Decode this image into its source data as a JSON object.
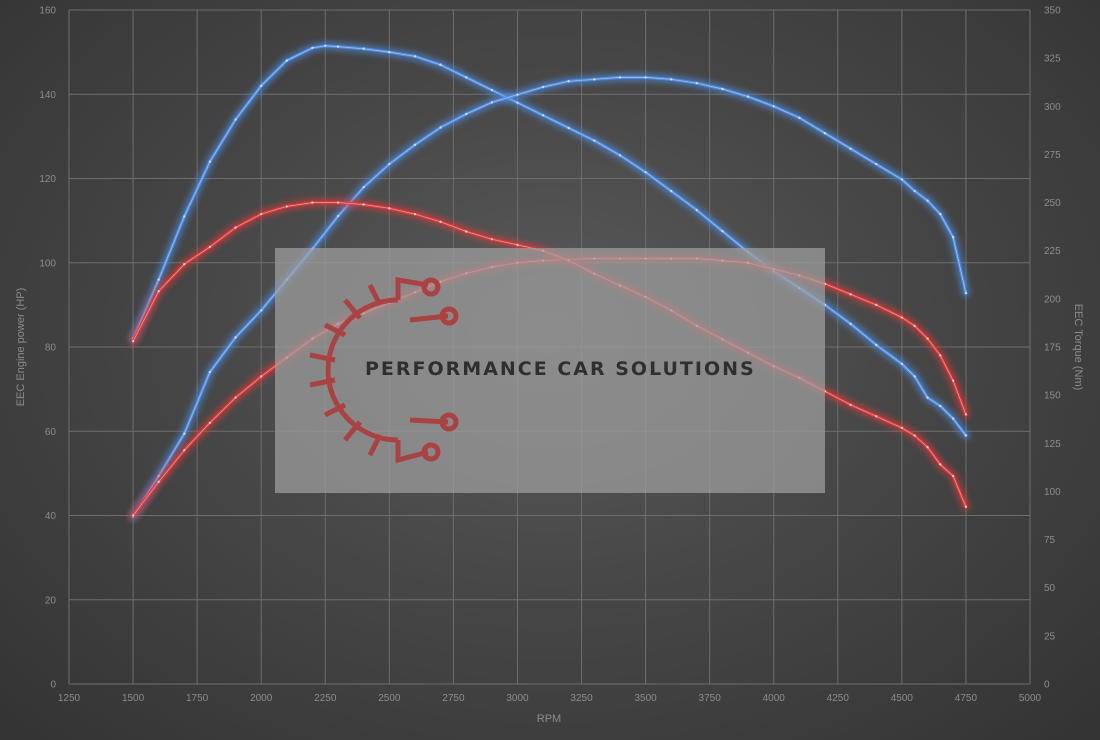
{
  "chart_data": {
    "type": "line",
    "title": "",
    "xlabel": "RPM",
    "ylabel_left": "EEC Engine power (HP)",
    "ylabel_right": "EEC Torque (Nm)",
    "xlim": [
      1250,
      5000
    ],
    "ylim_left": [
      0,
      160
    ],
    "ylim_right": [
      0,
      350
    ],
    "x_ticks": [
      1250,
      1500,
      1750,
      2000,
      2250,
      2500,
      2750,
      3000,
      3250,
      3500,
      3750,
      4000,
      4250,
      4500,
      4750,
      5000
    ],
    "y_ticks_left": [
      0,
      20,
      40,
      60,
      80,
      100,
      120,
      140,
      160
    ],
    "y_ticks_right": [
      0,
      25,
      50,
      75,
      100,
      125,
      150,
      175,
      200,
      225,
      250,
      275,
      300,
      325,
      350
    ],
    "grid": true,
    "legend": "none",
    "colors": {
      "tuned": "#4f8fe6",
      "stock": "#e03a3a"
    },
    "series": [
      {
        "axis": "left",
        "color_key": "tuned",
        "x": [
          1500,
          1600,
          1700,
          1800,
          1900,
          2000,
          2100,
          2200,
          2250,
          2300,
          2400,
          2500,
          2600,
          2700,
          2800,
          2900,
          3000,
          3100,
          3200,
          3300,
          3400,
          3500,
          3600,
          3700,
          3800,
          3900,
          4000,
          4100,
          4200,
          4300,
          4400,
          4500,
          4550,
          4600,
          4650,
          4700,
          4750
        ],
        "y": [
          82,
          96,
          111,
          124,
          134,
          142,
          148,
          151,
          151.5,
          151.3,
          150.8,
          150,
          149,
          147,
          144,
          141,
          138,
          135,
          132,
          129,
          125.5,
          121.5,
          117,
          112.5,
          107.5,
          102.5,
          98,
          94,
          90,
          85.5,
          80.5,
          76,
          73,
          68,
          66,
          63,
          59
        ]
      },
      {
        "axis": "right",
        "color_key": "tuned",
        "x": [
          1500,
          1600,
          1700,
          1800,
          1900,
          2000,
          2100,
          2200,
          2300,
          2400,
          2500,
          2600,
          2700,
          2800,
          2900,
          3000,
          3100,
          3200,
          3300,
          3400,
          3500,
          3600,
          3700,
          3800,
          3900,
          4000,
          4100,
          4200,
          4300,
          4400,
          4500,
          4550,
          4600,
          4650,
          4700,
          4750
        ],
        "y": [
          87,
          108,
          130,
          162,
          180,
          194,
          210,
          226,
          243,
          258,
          270,
          280,
          289,
          296,
          302,
          306,
          310,
          313,
          314,
          315,
          315,
          314,
          312,
          309,
          305,
          300,
          294,
          286,
          278,
          270,
          262,
          256,
          251,
          244,
          232,
          203
        ]
      },
      {
        "axis": "left",
        "color_key": "stock",
        "x": [
          1500,
          1600,
          1700,
          1800,
          1900,
          2000,
          2100,
          2200,
          2300,
          2400,
          2500,
          2600,
          2700,
          2800,
          2900,
          3000,
          3100,
          3200,
          3300,
          3400,
          3500,
          3600,
          3700,
          3800,
          3900,
          4000,
          4100,
          4200,
          4300,
          4400,
          4500,
          4550,
          4600,
          4650,
          4700,
          4750
        ],
        "y": [
          40,
          48,
          55.5,
          62,
          68,
          73,
          77.5,
          82,
          85.5,
          88,
          90.5,
          93,
          95.5,
          97.5,
          99,
          100,
          100.5,
          100.8,
          101,
          101,
          101,
          101,
          101,
          100.5,
          100,
          98.5,
          97,
          95,
          92.5,
          90,
          87,
          85,
          82,
          78,
          72,
          64
        ]
      },
      {
        "axis": "right",
        "color_key": "stock",
        "x": [
          1500,
          1600,
          1700,
          1800,
          1900,
          2000,
          2100,
          2200,
          2300,
          2400,
          2500,
          2600,
          2700,
          2800,
          2900,
          3000,
          3100,
          3200,
          3300,
          3400,
          3500,
          3600,
          3700,
          3800,
          3900,
          4000,
          4100,
          4200,
          4300,
          4400,
          4500,
          4550,
          4600,
          4650,
          4700,
          4750
        ],
        "y": [
          178,
          204,
          218,
          227,
          237,
          244,
          248,
          250,
          250,
          249,
          247,
          244,
          240,
          235,
          231,
          228,
          225,
          220,
          213,
          207,
          201,
          194,
          186,
          179,
          172,
          165,
          159,
          152,
          145,
          139,
          133,
          129,
          123,
          114,
          108,
          92
        ]
      }
    ]
  },
  "watermark": {
    "text": "PERFORMANCE CAR SOLUTIONS",
    "logo_icon": "gear-circuit-icon",
    "panel_color": "#a0a0a0",
    "logo_color": "#a94343",
    "text_color": "#2f2f2f"
  }
}
